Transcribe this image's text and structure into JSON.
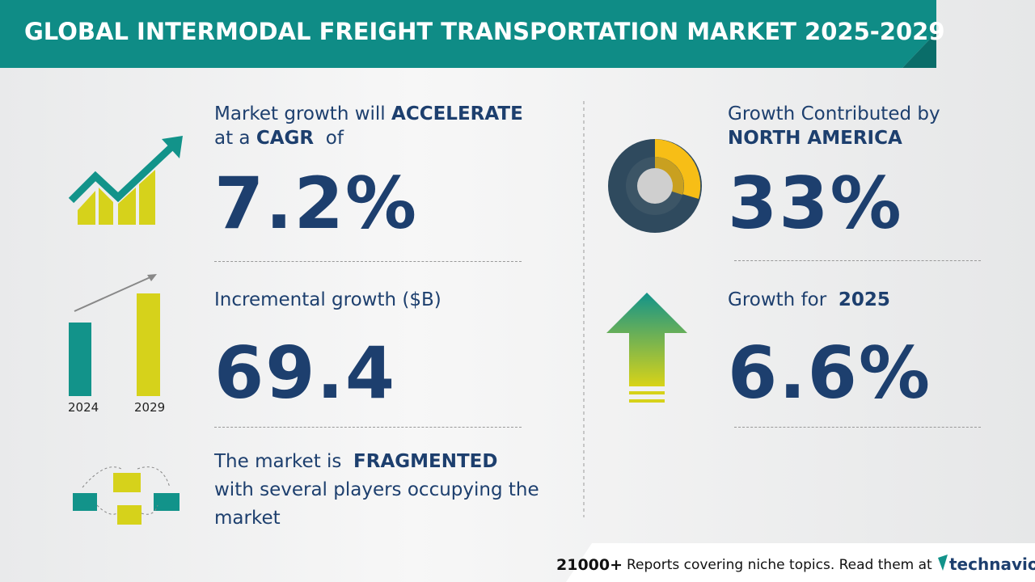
{
  "header": {
    "title": "GLOBAL INTERMODAL FREIGHT TRANSPORTATION MARKET 2025-2029"
  },
  "cagr": {
    "line1_text": "Market growth will",
    "line1_bold": "ACCELERATE",
    "line2_text": "at a",
    "line2_bold": "CAGR",
    "line2_end": "of",
    "value": "7.2%"
  },
  "incremental": {
    "label": "Incremental growth ($B)",
    "value": "69.4",
    "bar_labels": [
      "2024",
      "2029"
    ]
  },
  "fragmented": {
    "line1_text": "The market is",
    "line1_bold": "FRAGMENTED",
    "line2": "with several players occupying the",
    "line3": "market"
  },
  "region": {
    "label": "Growth Contributed by",
    "region": "NORTH AMERICA",
    "value": "33%"
  },
  "year_growth": {
    "label": "Growth for",
    "year": "2025",
    "value": "6.6%"
  },
  "footer": {
    "count": "21000+",
    "text": "Reports covering niche topics. Read them at",
    "brand": "technavio"
  }
}
